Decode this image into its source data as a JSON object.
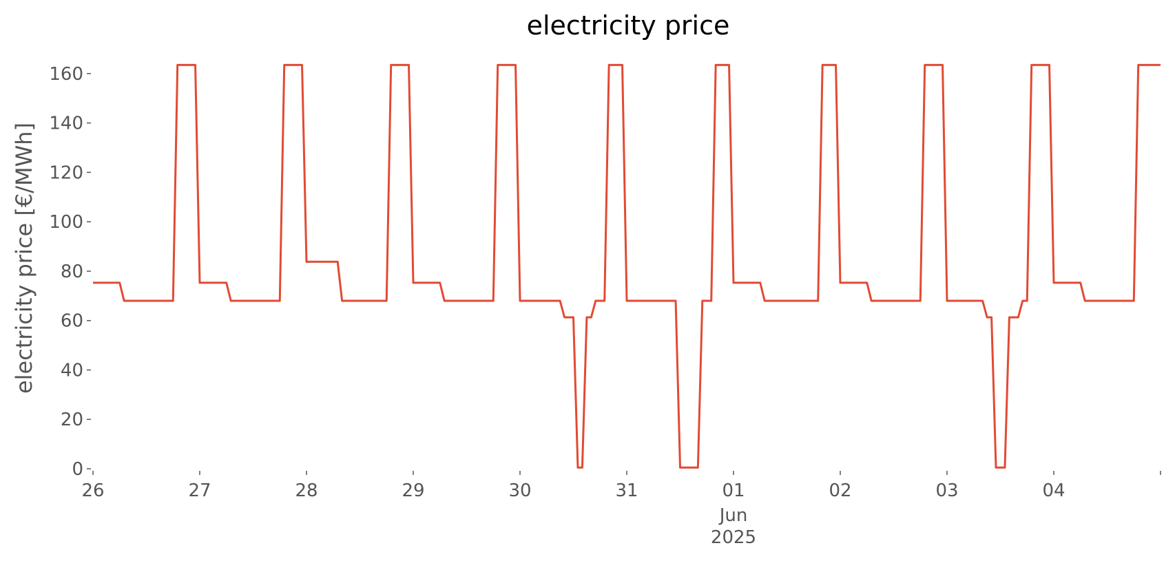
{
  "chart_data": {
    "type": "line",
    "title": "electricity price",
    "xlabel": "",
    "ylabel": "electricity price [€/MWh]",
    "ylim": [
      0,
      170
    ],
    "xlim": [
      "2025-05-26T00:00",
      "2025-06-05T00:00"
    ],
    "yticks": [
      0,
      20,
      40,
      60,
      80,
      100,
      120,
      140,
      160
    ],
    "xticks": [
      {
        "label": "26",
        "sub": ""
      },
      {
        "label": "27",
        "sub": ""
      },
      {
        "label": "28",
        "sub": ""
      },
      {
        "label": "29",
        "sub": ""
      },
      {
        "label": "30",
        "sub": ""
      },
      {
        "label": "31",
        "sub": ""
      },
      {
        "label": "01",
        "sub": "Jun\n2025"
      },
      {
        "label": "02",
        "sub": ""
      },
      {
        "label": "03",
        "sub": ""
      },
      {
        "label": "04",
        "sub": ""
      }
    ],
    "grid": false,
    "legend": "none",
    "series": [
      {
        "color": "#E24A33",
        "points": [
          [
            "2025-05-26T00:00",
            75.3
          ],
          [
            "2025-05-26T06:00",
            75.3
          ],
          [
            "2025-05-26T07:00",
            68.0
          ],
          [
            "2025-05-26T18:00",
            68.0
          ],
          [
            "2025-05-26T19:00",
            163.5
          ],
          [
            "2025-05-26T23:00",
            163.5
          ],
          [
            "2025-05-27T00:00",
            75.3
          ],
          [
            "2025-05-27T06:00",
            75.3
          ],
          [
            "2025-05-27T07:00",
            68.0
          ],
          [
            "2025-05-27T18:00",
            68.0
          ],
          [
            "2025-05-27T19:00",
            163.5
          ],
          [
            "2025-05-27T23:00",
            163.5
          ],
          [
            "2025-05-28T00:00",
            83.8
          ],
          [
            "2025-05-28T07:00",
            83.8
          ],
          [
            "2025-05-28T08:00",
            68.0
          ],
          [
            "2025-05-28T18:00",
            68.0
          ],
          [
            "2025-05-28T19:00",
            163.5
          ],
          [
            "2025-05-28T23:00",
            163.5
          ],
          [
            "2025-05-29T00:00",
            75.3
          ],
          [
            "2025-05-29T06:00",
            75.3
          ],
          [
            "2025-05-29T07:00",
            68.0
          ],
          [
            "2025-05-29T18:00",
            68.0
          ],
          [
            "2025-05-29T19:00",
            163.5
          ],
          [
            "2025-05-29T23:00",
            163.5
          ],
          [
            "2025-05-30T00:00",
            68.0
          ],
          [
            "2025-05-30T09:00",
            68.0
          ],
          [
            "2025-05-30T10:00",
            61.3
          ],
          [
            "2025-05-30T12:00",
            61.3
          ],
          [
            "2025-05-30T13:00",
            0.5
          ],
          [
            "2025-05-30T14:00",
            0.5
          ],
          [
            "2025-05-30T15:00",
            61.3
          ],
          [
            "2025-05-30T16:00",
            61.3
          ],
          [
            "2025-05-30T17:00",
            68.0
          ],
          [
            "2025-05-30T19:00",
            68.0
          ],
          [
            "2025-05-30T20:00",
            163.5
          ],
          [
            "2025-05-30T23:00",
            163.5
          ],
          [
            "2025-05-31T00:00",
            68.0
          ],
          [
            "2025-05-31T11:00",
            68.0
          ],
          [
            "2025-05-31T12:00",
            0.5
          ],
          [
            "2025-05-31T16:00",
            0.5
          ],
          [
            "2025-05-31T17:00",
            68.0
          ],
          [
            "2025-05-31T19:00",
            68.0
          ],
          [
            "2025-05-31T20:00",
            163.5
          ],
          [
            "2025-05-31T23:00",
            163.5
          ],
          [
            "2025-06-01T00:00",
            75.3
          ],
          [
            "2025-06-01T06:00",
            75.3
          ],
          [
            "2025-06-01T07:00",
            68.0
          ],
          [
            "2025-06-01T19:00",
            68.0
          ],
          [
            "2025-06-01T20:00",
            163.5
          ],
          [
            "2025-06-01T23:00",
            163.5
          ],
          [
            "2025-06-02T00:00",
            75.3
          ],
          [
            "2025-06-02T06:00",
            75.3
          ],
          [
            "2025-06-02T07:00",
            68.0
          ],
          [
            "2025-06-02T18:00",
            68.0
          ],
          [
            "2025-06-02T19:00",
            163.5
          ],
          [
            "2025-06-02T23:00",
            163.5
          ],
          [
            "2025-06-03T00:00",
            68.0
          ],
          [
            "2025-06-03T08:00",
            68.0
          ],
          [
            "2025-06-03T09:00",
            61.3
          ],
          [
            "2025-06-03T10:00",
            61.3
          ],
          [
            "2025-06-03T11:00",
            0.5
          ],
          [
            "2025-06-03T13:00",
            0.5
          ],
          [
            "2025-06-03T14:00",
            61.3
          ],
          [
            "2025-06-03T16:00",
            61.3
          ],
          [
            "2025-06-03T17:00",
            68.0
          ],
          [
            "2025-06-03T18:00",
            68.0
          ],
          [
            "2025-06-03T19:00",
            163.5
          ],
          [
            "2025-06-03T23:00",
            163.5
          ],
          [
            "2025-06-04T00:00",
            75.3
          ],
          [
            "2025-06-04T06:00",
            75.3
          ],
          [
            "2025-06-04T07:00",
            68.0
          ],
          [
            "2025-06-04T18:00",
            68.0
          ],
          [
            "2025-06-04T19:00",
            163.5
          ],
          [
            "2025-06-04T23:00",
            163.5
          ]
        ]
      }
    ]
  }
}
